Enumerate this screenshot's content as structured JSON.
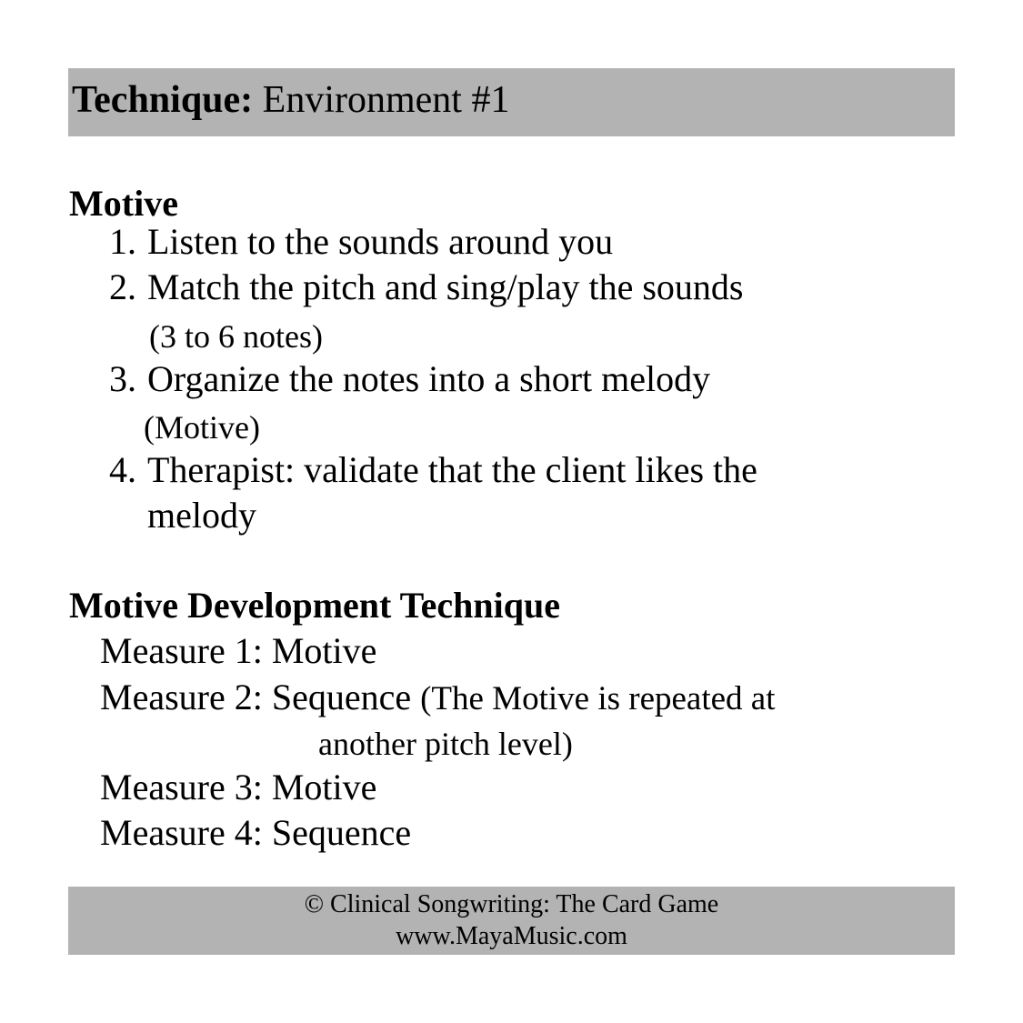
{
  "header": {
    "label": "Technique:",
    "title": "Environment #1"
  },
  "motive": {
    "heading": "Motive",
    "steps": [
      {
        "num": "1.",
        "text": "Listen to the sounds around you"
      },
      {
        "num": "2.",
        "text": "Match the pitch and sing/play the sounds",
        "note": "(3 to 6 notes)"
      },
      {
        "num": "3.",
        "text": "Organize the notes into a short melody",
        "note": "(Motive)"
      },
      {
        "num": "4.",
        "text": "Therapist: validate that the client likes the",
        "cont": "melody"
      }
    ]
  },
  "development": {
    "heading": "Motive Development Technique",
    "measures": [
      {
        "label": "Measure 1:",
        "value": "Motive"
      },
      {
        "label": "Measure 2:",
        "value": "Sequence",
        "note": "(The Motive is repeated at",
        "note_cont": "another pitch level)"
      },
      {
        "label": "Measure 3:",
        "value": "Motive"
      },
      {
        "label": "Measure 4:",
        "value": "Sequence"
      }
    ]
  },
  "footer": {
    "copyright": "© Clinical Songwriting: The Card Game",
    "website": "www.MayaMusic.com"
  }
}
